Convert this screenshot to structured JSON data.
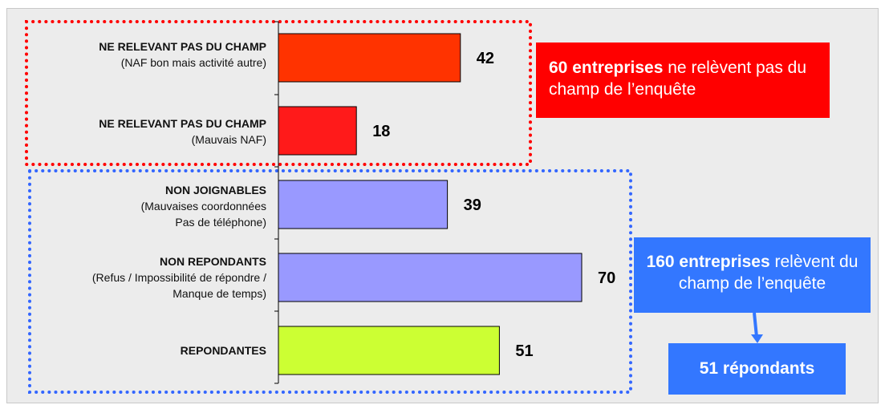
{
  "chart_data": {
    "type": "bar",
    "orientation": "horizontal",
    "categories": [
      {
        "main": "NE RELEVANT PAS DU CHAMP",
        "sub": [
          "(NAF bon mais activité autre)"
        ]
      },
      {
        "main": "NE RELEVANT PAS DU CHAMP",
        "sub": [
          "(Mauvais NAF)"
        ]
      },
      {
        "main": "NON JOIGNABLES",
        "sub": [
          "(Mauvaises coordonnées",
          "Pas de téléphone)"
        ]
      },
      {
        "main": "NON REPONDANTS",
        "sub": [
          "(Refus / Impossibilité de répondre /",
          "Manque de temps)"
        ]
      },
      {
        "main": "REPONDANTES",
        "sub": []
      }
    ],
    "values": [
      42,
      18,
      39,
      70,
      51
    ],
    "colors": [
      "#ff3300",
      "#ff1a1a",
      "#9999ff",
      "#9999ff",
      "#ccff33"
    ],
    "xlim": [
      0,
      80
    ],
    "grid": false,
    "groups": [
      {
        "name": "hors champ",
        "color": "#ff0000",
        "style": "dotted",
        "members": [
          0,
          1
        ]
      },
      {
        "name": "champ",
        "color": "#3366ff",
        "style": "dotted",
        "members": [
          2,
          3,
          4
        ]
      }
    ]
  },
  "callouts": {
    "out_of_scope": {
      "bold": "60 entreprises",
      "text": " ne relèvent pas du champ de l’enquête",
      "color": "#ff0000"
    },
    "in_scope": {
      "bold": "160 entreprises",
      "text": " relèvent du champ de l’enquête",
      "color": "#3377ff"
    },
    "respondents": {
      "bold": "51 répondants",
      "color": "#3377ff"
    }
  }
}
